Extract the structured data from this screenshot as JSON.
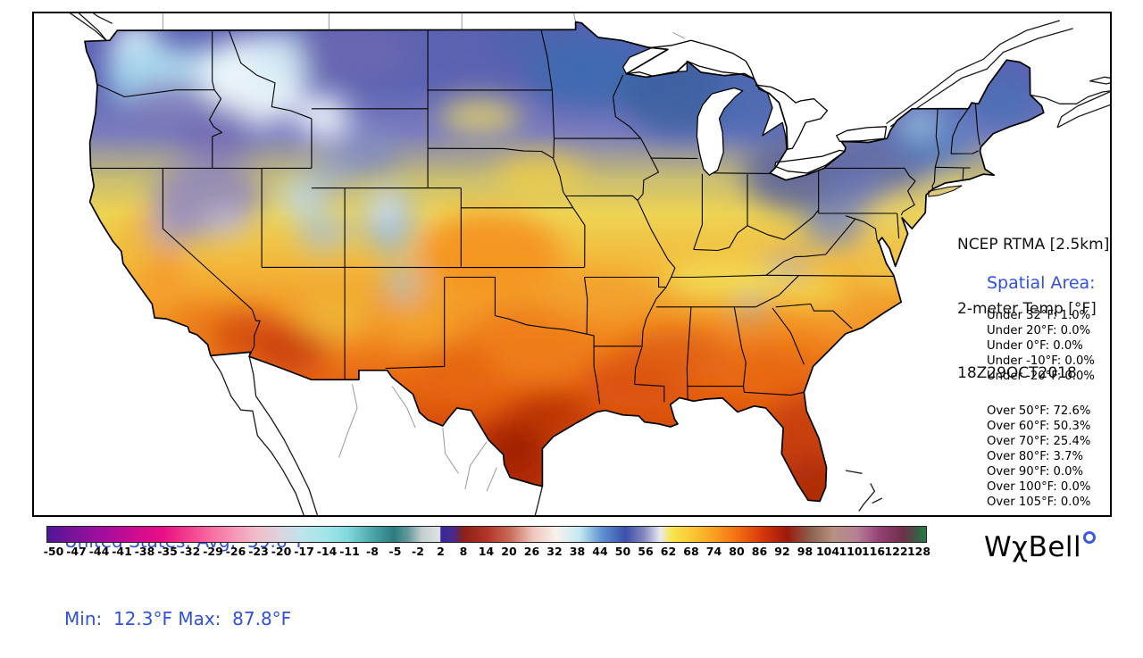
{
  "map_panel": {
    "title": {
      "line1": "NCEP RTMA [2.5km]",
      "line2": "2-meter Temp [°F]",
      "line3": "18Z29OCT2018"
    },
    "spatial_area": {
      "heading": "Spatial Area:",
      "under_stats": [
        {
          "label": "Under 32°F",
          "value": "1.0%"
        },
        {
          "label": "Under 20°F",
          "value": "0.0%"
        },
        {
          "label": "Under 0°F",
          "value": "0.0%"
        },
        {
          "label": "Under -10°F",
          "value": "0.0%"
        },
        {
          "label": "Under -20°F",
          "value": "0.0%"
        }
      ],
      "over_stats": [
        {
          "label": "Over 50°F",
          "value": "72.6%"
        },
        {
          "label": "Over 60°F",
          "value": "50.3%"
        },
        {
          "label": "Over 70°F",
          "value": "25.4%"
        },
        {
          "label": "Over 80°F",
          "value": "3.7%"
        },
        {
          "label": "Over 90°F",
          "value": "0.0%"
        },
        {
          "label": "Over 100°F",
          "value": "0.0%"
        },
        {
          "label": "Over 105°F",
          "value": "0.0%"
        }
      ]
    },
    "summary": {
      "line1": "United States: Avg:  59.6°F",
      "line2": "Min:  12.3°F Max:  87.8°F"
    }
  },
  "colorbar": {
    "tick_labels": [
      "-50",
      "-47",
      "-44",
      "-41",
      "-38",
      "-35",
      "-32",
      "-29",
      "-26",
      "-23",
      "-20",
      "-17",
      "-14",
      "-11",
      "-8",
      "-5",
      "-2",
      "2",
      "8",
      "14",
      "20",
      "26",
      "32",
      "38",
      "44",
      "50",
      "56",
      "62",
      "68",
      "74",
      "80",
      "86",
      "92",
      "98",
      "104",
      "110",
      "116",
      "122",
      "128"
    ],
    "gradient_stops": [
      [
        0,
        "#4c1796"
      ],
      [
        1,
        "#76139a"
      ],
      [
        2,
        "#960f9e"
      ],
      [
        3,
        "#b40c99"
      ],
      [
        4,
        "#d40c8f"
      ],
      [
        5,
        "#e90e85"
      ],
      [
        6,
        "#f23b8c"
      ],
      [
        7,
        "#f768a0"
      ],
      [
        8,
        "#f793b4"
      ],
      [
        9,
        "#f0bcca"
      ],
      [
        10,
        "#ded2dd"
      ],
      [
        11,
        "#bee3ec"
      ],
      [
        12,
        "#a3e6ea"
      ],
      [
        13,
        "#82d9dd"
      ],
      [
        14,
        "#4ea8ac"
      ],
      [
        15,
        "#2b7c80"
      ],
      [
        15.6,
        "#63999b"
      ],
      [
        16.2,
        "#c2cfcf"
      ],
      [
        16.98,
        "#dde3e3"
      ],
      [
        17.02,
        "#39299f"
      ],
      [
        17.6,
        "#4b2a86"
      ],
      [
        18,
        "#8c2118"
      ],
      [
        19,
        "#b23427"
      ],
      [
        20,
        "#c96a57"
      ],
      [
        21,
        "#eec6be"
      ],
      [
        22,
        "#f9f0ed"
      ],
      [
        23,
        "#c5eaf2"
      ],
      [
        24,
        "#5e90d1"
      ],
      [
        25,
        "#3b50ab"
      ],
      [
        25.8,
        "#8487be"
      ],
      [
        26.5,
        "#e9e9f1"
      ],
      [
        27,
        "#f8e64d"
      ],
      [
        28,
        "#f9c331"
      ],
      [
        29,
        "#f99820"
      ],
      [
        30,
        "#f1660e"
      ],
      [
        31,
        "#d43409"
      ],
      [
        32,
        "#9c1a0b"
      ],
      [
        33,
        "#8d604e"
      ],
      [
        34,
        "#b6927f"
      ],
      [
        35,
        "#b77f97"
      ],
      [
        36,
        "#944075"
      ],
      [
        37,
        "#6f3049"
      ],
      [
        37.6,
        "#3e5a45"
      ],
      [
        38,
        "#1e8042"
      ]
    ]
  },
  "logo": {
    "part1": "W",
    "chi": "χ",
    "part2": "Bell"
  },
  "colors": {
    "text_blue": "#3050e0",
    "frame": "#000000"
  }
}
